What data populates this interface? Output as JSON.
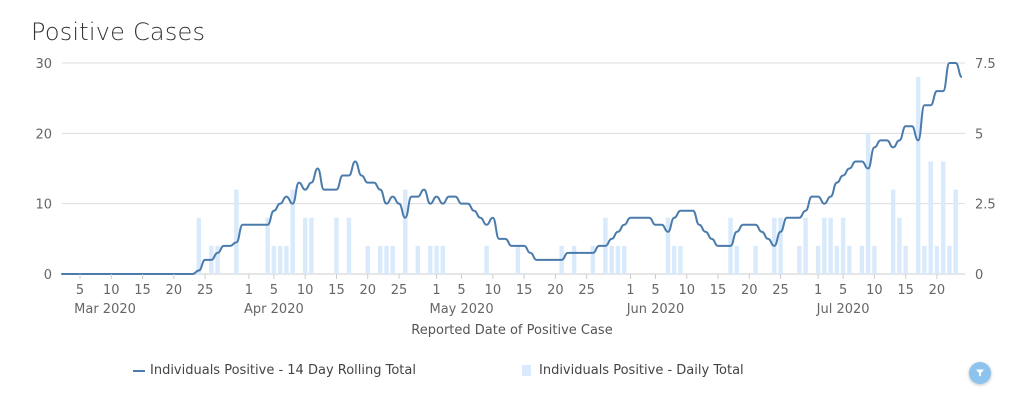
{
  "title": "Positive Cases",
  "colors": {
    "line": "#4a7bab",
    "bar": "#d8eafc",
    "grid": "#dddddd",
    "filter": "#8cc4ef"
  },
  "filter_icon": "filter-icon",
  "chart_data": {
    "type": "bar+line",
    "title": "Positive Cases",
    "xlabel": "Reported Date of Positive Case",
    "x_range": [
      "2020-03-02",
      "2020-07-24"
    ],
    "left_axis": {
      "ylim": [
        0,
        30
      ],
      "ticks": [
        "0",
        "10",
        "20",
        "30"
      ]
    },
    "right_axis": {
      "ylim": [
        0,
        7.5
      ],
      "ticks": [
        "0",
        "2.5",
        "5",
        "7.5"
      ]
    },
    "x_ticks": [
      {
        "date": "2020-03-05",
        "label": "5"
      },
      {
        "date": "2020-03-10",
        "label": "10"
      },
      {
        "date": "2020-03-15",
        "label": "15"
      },
      {
        "date": "2020-03-20",
        "label": "20"
      },
      {
        "date": "2020-03-25",
        "label": "25"
      },
      {
        "date": "2020-04-01",
        "label": "1"
      },
      {
        "date": "2020-04-05",
        "label": "5"
      },
      {
        "date": "2020-04-10",
        "label": "10"
      },
      {
        "date": "2020-04-15",
        "label": "15"
      },
      {
        "date": "2020-04-20",
        "label": "20"
      },
      {
        "date": "2020-04-25",
        "label": "25"
      },
      {
        "date": "2020-05-01",
        "label": "1"
      },
      {
        "date": "2020-05-05",
        "label": "5"
      },
      {
        "date": "2020-05-10",
        "label": "10"
      },
      {
        "date": "2020-05-15",
        "label": "15"
      },
      {
        "date": "2020-05-20",
        "label": "20"
      },
      {
        "date": "2020-05-25",
        "label": "25"
      },
      {
        "date": "2020-06-01",
        "label": "1"
      },
      {
        "date": "2020-06-05",
        "label": "5"
      },
      {
        "date": "2020-06-10",
        "label": "10"
      },
      {
        "date": "2020-06-15",
        "label": "15"
      },
      {
        "date": "2020-06-20",
        "label": "20"
      },
      {
        "date": "2020-06-25",
        "label": "25"
      },
      {
        "date": "2020-07-01",
        "label": "1"
      },
      {
        "date": "2020-07-05",
        "label": "5"
      },
      {
        "date": "2020-07-10",
        "label": "10"
      },
      {
        "date": "2020-07-15",
        "label": "15"
      },
      {
        "date": "2020-07-20",
        "label": "20"
      }
    ],
    "month_labels": [
      {
        "date": "2020-03-09",
        "label": "Mar 2020"
      },
      {
        "date": "2020-04-05",
        "label": "Apr 2020"
      },
      {
        "date": "2020-05-05",
        "label": "May 2020"
      },
      {
        "date": "2020-06-05",
        "label": "Jun 2020"
      },
      {
        "date": "2020-07-05",
        "label": "Jul 2020"
      }
    ],
    "legend_position": "bottom",
    "series": [
      {
        "name": "Individuals Positive - 14 Day Rolling Total",
        "type": "line",
        "axis": "left",
        "points": [
          [
            "2020-03-02",
            0
          ],
          [
            "2020-03-23",
            0
          ],
          [
            "2020-03-24",
            0.5
          ],
          [
            "2020-03-25",
            2
          ],
          [
            "2020-03-26",
            2
          ],
          [
            "2020-03-27",
            3
          ],
          [
            "2020-03-28",
            4
          ],
          [
            "2020-03-29",
            4
          ],
          [
            "2020-03-30",
            4.5
          ],
          [
            "2020-03-31",
            7
          ],
          [
            "2020-04-04",
            7
          ],
          [
            "2020-04-05",
            9
          ],
          [
            "2020-04-06",
            10
          ],
          [
            "2020-04-07",
            11
          ],
          [
            "2020-04-08",
            10
          ],
          [
            "2020-04-09",
            13
          ],
          [
            "2020-04-10",
            12
          ],
          [
            "2020-04-11",
            13
          ],
          [
            "2020-04-12",
            15
          ],
          [
            "2020-04-13",
            12
          ],
          [
            "2020-04-15",
            12
          ],
          [
            "2020-04-16",
            14
          ],
          [
            "2020-04-17",
            14
          ],
          [
            "2020-04-18",
            16
          ],
          [
            "2020-04-19",
            14
          ],
          [
            "2020-04-20",
            13
          ],
          [
            "2020-04-21",
            13
          ],
          [
            "2020-04-22",
            12
          ],
          [
            "2020-04-23",
            10
          ],
          [
            "2020-04-24",
            11
          ],
          [
            "2020-04-25",
            10
          ],
          [
            "2020-04-26",
            8
          ],
          [
            "2020-04-27",
            11
          ],
          [
            "2020-04-28",
            11
          ],
          [
            "2020-04-29",
            12
          ],
          [
            "2020-04-30",
            10
          ],
          [
            "2020-05-01",
            11
          ],
          [
            "2020-05-02",
            10
          ],
          [
            "2020-05-03",
            11
          ],
          [
            "2020-05-04",
            11
          ],
          [
            "2020-05-05",
            10
          ],
          [
            "2020-05-06",
            10
          ],
          [
            "2020-05-07",
            9
          ],
          [
            "2020-05-08",
            8
          ],
          [
            "2020-05-09",
            7
          ],
          [
            "2020-05-10",
            8
          ],
          [
            "2020-05-11",
            5
          ],
          [
            "2020-05-12",
            5
          ],
          [
            "2020-05-13",
            4
          ],
          [
            "2020-05-15",
            4
          ],
          [
            "2020-05-16",
            3
          ],
          [
            "2020-05-17",
            2
          ],
          [
            "2020-05-21",
            2
          ],
          [
            "2020-05-22",
            3
          ],
          [
            "2020-05-26",
            3
          ],
          [
            "2020-05-27",
            4
          ],
          [
            "2020-05-28",
            4
          ],
          [
            "2020-05-29",
            5
          ],
          [
            "2020-05-30",
            6
          ],
          [
            "2020-05-31",
            7
          ],
          [
            "2020-06-01",
            8
          ],
          [
            "2020-06-04",
            8
          ],
          [
            "2020-06-05",
            7
          ],
          [
            "2020-06-06",
            7
          ],
          [
            "2020-06-07",
            6
          ],
          [
            "2020-06-08",
            8
          ],
          [
            "2020-06-09",
            9
          ],
          [
            "2020-06-11",
            9
          ],
          [
            "2020-06-12",
            7
          ],
          [
            "2020-06-13",
            6
          ],
          [
            "2020-06-14",
            5
          ],
          [
            "2020-06-15",
            4
          ],
          [
            "2020-06-17",
            4
          ],
          [
            "2020-06-18",
            6
          ],
          [
            "2020-06-19",
            7
          ],
          [
            "2020-06-21",
            7
          ],
          [
            "2020-06-22",
            6
          ],
          [
            "2020-06-23",
            5
          ],
          [
            "2020-06-24",
            4
          ],
          [
            "2020-06-25",
            6
          ],
          [
            "2020-06-26",
            8
          ],
          [
            "2020-06-28",
            8
          ],
          [
            "2020-06-29",
            9
          ],
          [
            "2020-06-30",
            11
          ],
          [
            "2020-07-01",
            11
          ],
          [
            "2020-07-02",
            10
          ],
          [
            "2020-07-03",
            11
          ],
          [
            "2020-07-04",
            13
          ],
          [
            "2020-07-05",
            14
          ],
          [
            "2020-07-06",
            15
          ],
          [
            "2020-07-07",
            16
          ],
          [
            "2020-07-08",
            16
          ],
          [
            "2020-07-09",
            15
          ],
          [
            "2020-07-10",
            18
          ],
          [
            "2020-07-11",
            19
          ],
          [
            "2020-07-12",
            19
          ],
          [
            "2020-07-13",
            18
          ],
          [
            "2020-07-14",
            19
          ],
          [
            "2020-07-15",
            21
          ],
          [
            "2020-07-16",
            21
          ],
          [
            "2020-07-17",
            19
          ],
          [
            "2020-07-18",
            24
          ],
          [
            "2020-07-19",
            24
          ],
          [
            "2020-07-20",
            26
          ],
          [
            "2020-07-21",
            26
          ],
          [
            "2020-07-22",
            30
          ],
          [
            "2020-07-23",
            30
          ],
          [
            "2020-07-24",
            28
          ]
        ]
      },
      {
        "name": "Individuals Positive - Daily Total",
        "type": "bar",
        "axis": "right",
        "points": [
          [
            "2020-03-24",
            2
          ],
          [
            "2020-03-26",
            1
          ],
          [
            "2020-03-27",
            1
          ],
          [
            "2020-03-30",
            3
          ],
          [
            "2020-04-04",
            2
          ],
          [
            "2020-04-05",
            1
          ],
          [
            "2020-04-06",
            1
          ],
          [
            "2020-04-07",
            1
          ],
          [
            "2020-04-08",
            3
          ],
          [
            "2020-04-10",
            2
          ],
          [
            "2020-04-11",
            2
          ],
          [
            "2020-04-15",
            2
          ],
          [
            "2020-04-17",
            2
          ],
          [
            "2020-04-20",
            1
          ],
          [
            "2020-04-22",
            1
          ],
          [
            "2020-04-23",
            1
          ],
          [
            "2020-04-24",
            1
          ],
          [
            "2020-04-26",
            3
          ],
          [
            "2020-04-28",
            1
          ],
          [
            "2020-04-30",
            1
          ],
          [
            "2020-05-01",
            1
          ],
          [
            "2020-05-02",
            1
          ],
          [
            "2020-05-09",
            1
          ],
          [
            "2020-05-14",
            1
          ],
          [
            "2020-05-21",
            1
          ],
          [
            "2020-05-23",
            1
          ],
          [
            "2020-05-26",
            1
          ],
          [
            "2020-05-28",
            2
          ],
          [
            "2020-05-29",
            1
          ],
          [
            "2020-05-30",
            1
          ],
          [
            "2020-05-31",
            1
          ],
          [
            "2020-06-07",
            2
          ],
          [
            "2020-06-08",
            1
          ],
          [
            "2020-06-09",
            1
          ],
          [
            "2020-06-17",
            2
          ],
          [
            "2020-06-18",
            1
          ],
          [
            "2020-06-21",
            1
          ],
          [
            "2020-06-24",
            2
          ],
          [
            "2020-06-25",
            2
          ],
          [
            "2020-06-28",
            1
          ],
          [
            "2020-06-29",
            2
          ],
          [
            "2020-07-01",
            1
          ],
          [
            "2020-07-02",
            2
          ],
          [
            "2020-07-03",
            2
          ],
          [
            "2020-07-04",
            1
          ],
          [
            "2020-07-05",
            2
          ],
          [
            "2020-07-06",
            1
          ],
          [
            "2020-07-08",
            1
          ],
          [
            "2020-07-09",
            5
          ],
          [
            "2020-07-10",
            1
          ],
          [
            "2020-07-13",
            3
          ],
          [
            "2020-07-14",
            2
          ],
          [
            "2020-07-15",
            1
          ],
          [
            "2020-07-17",
            7
          ],
          [
            "2020-07-18",
            1
          ],
          [
            "2020-07-19",
            4
          ],
          [
            "2020-07-20",
            1
          ],
          [
            "2020-07-21",
            4
          ],
          [
            "2020-07-22",
            1
          ],
          [
            "2020-07-23",
            3
          ]
        ]
      }
    ]
  }
}
